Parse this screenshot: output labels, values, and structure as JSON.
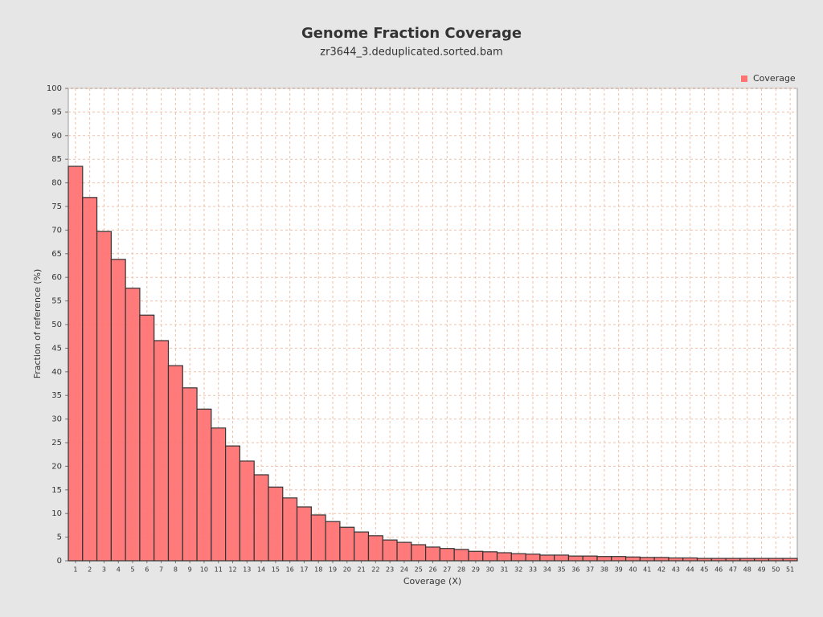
{
  "chart_data": {
    "type": "bar",
    "title": "Genome Fraction Coverage",
    "subtitle": "zr3644_3.deduplicated.sorted.bam",
    "x_label": "Coverage (X)",
    "y_label": "Fraction of reference (%)",
    "categories": [
      1,
      2,
      3,
      4,
      5,
      6,
      7,
      8,
      9,
      10,
      11,
      12,
      13,
      14,
      15,
      16,
      17,
      18,
      19,
      20,
      21,
      22,
      23,
      24,
      25,
      26,
      27,
      28,
      29,
      30,
      31,
      32,
      33,
      34,
      35,
      36,
      37,
      38,
      39,
      40,
      41,
      42,
      43,
      44,
      45,
      46,
      47,
      48,
      49,
      50,
      51
    ],
    "series": [
      {
        "name": "Coverage",
        "color": "#ff7373",
        "values": [
          83.5,
          76.9,
          69.7,
          63.8,
          57.7,
          52.0,
          46.6,
          41.3,
          36.6,
          32.1,
          28.1,
          24.3,
          21.1,
          18.2,
          15.6,
          13.3,
          11.4,
          9.7,
          8.3,
          7.1,
          6.1,
          5.3,
          4.4,
          3.9,
          3.4,
          2.9,
          2.6,
          2.4,
          2.0,
          1.9,
          1.7,
          1.5,
          1.4,
          1.2,
          1.2,
          1.0,
          1.0,
          0.9,
          0.9,
          0.8,
          0.7,
          0.7,
          0.6,
          0.6,
          0.5,
          0.5,
          0.5,
          0.5,
          0.5,
          0.5,
          0.5
        ]
      }
    ],
    "ylim": [
      0,
      100
    ],
    "yticks": [
      0,
      5,
      10,
      15,
      20,
      25,
      30,
      35,
      40,
      45,
      50,
      55,
      60,
      65,
      70,
      75,
      80,
      85,
      90,
      95,
      100
    ],
    "grid": true,
    "legend": "top-right"
  }
}
